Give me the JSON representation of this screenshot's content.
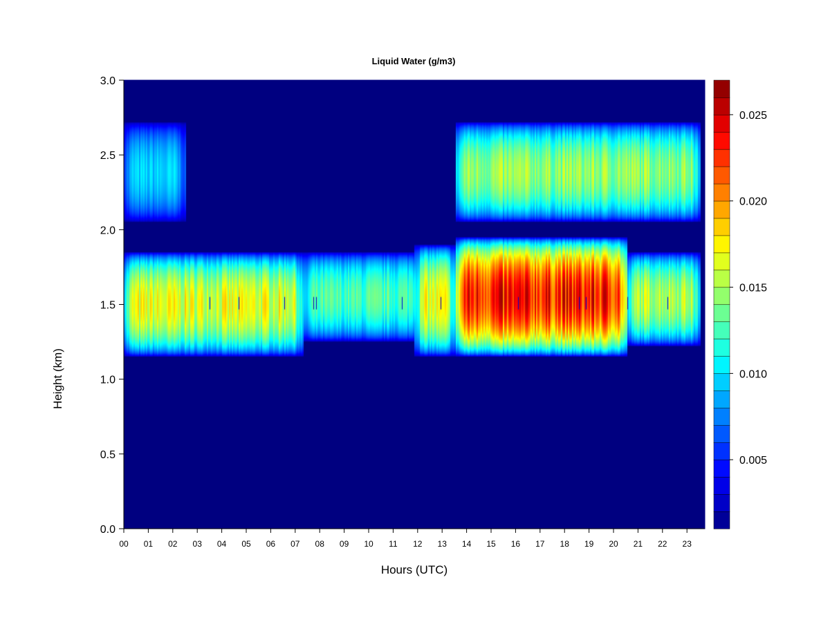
{
  "chart_data": {
    "type": "heatmap",
    "title": "Liquid Water (g/m3)",
    "xlabel": "Hours (UTC)",
    "ylabel": "Height (km)",
    "xlim": [
      0,
      24
    ],
    "ylim": [
      0.0,
      3.0
    ],
    "x_ticks": [
      "00",
      "01",
      "02",
      "03",
      "04",
      "05",
      "06",
      "07",
      "08",
      "09",
      "10",
      "11",
      "12",
      "13",
      "14",
      "15",
      "16",
      "17",
      "18",
      "19",
      "20",
      "21",
      "22",
      "23"
    ],
    "y_ticks": [
      "0.0",
      "0.5",
      "1.0",
      "1.5",
      "2.0",
      "2.5",
      "3.0"
    ],
    "colorbar": {
      "range": [
        0.001,
        0.027
      ],
      "ticks": [
        "0.005",
        "0.010",
        "0.015",
        "0.020",
        "0.025"
      ],
      "tick_values": [
        0.005,
        0.01,
        0.015,
        0.02,
        0.025
      ],
      "levels": 26,
      "colors": [
        "#000080",
        "#0000CD",
        "#0000FF",
        "#0040FF",
        "#0080FF",
        "#00BFFF",
        "#00FFFF",
        "#40FFBF",
        "#80FF80",
        "#BFFF40",
        "#FFFF00",
        "#FFBF00",
        "#FF8000",
        "#FF4000",
        "#FF0000",
        "#C00000",
        "#800000"
      ]
    },
    "background_value": 0.0,
    "layers": [
      {
        "name": "lower layer 00-07.5",
        "x": [
          0.0,
          7.4
        ],
        "y": [
          1.15,
          1.85
        ],
        "peak": 0.0165
      },
      {
        "name": "lower layer 07.5-12",
        "x": [
          7.4,
          12.4
        ],
        "y": [
          1.25,
          1.85
        ],
        "peak": 0.0125
      },
      {
        "name": "lower layer 12-14",
        "x": [
          12.0,
          13.7
        ],
        "y": [
          1.15,
          1.9
        ],
        "peak": 0.0165
      },
      {
        "name": "lower layer 14-21",
        "x": [
          13.7,
          20.8
        ],
        "y": [
          1.15,
          1.95
        ],
        "peak": 0.023
      },
      {
        "name": "lower layer 21-24",
        "x": [
          20.8,
          23.8
        ],
        "y": [
          1.22,
          1.85
        ],
        "peak": 0.0155
      },
      {
        "name": "upper layer 00-02.5",
        "x": [
          0.0,
          2.55
        ],
        "y": [
          2.05,
          2.72
        ],
        "peak": 0.0095
      },
      {
        "name": "upper layer 13.7-24",
        "x": [
          13.7,
          23.8
        ],
        "y": [
          2.05,
          2.72
        ],
        "peak": 0.0145
      }
    ]
  }
}
